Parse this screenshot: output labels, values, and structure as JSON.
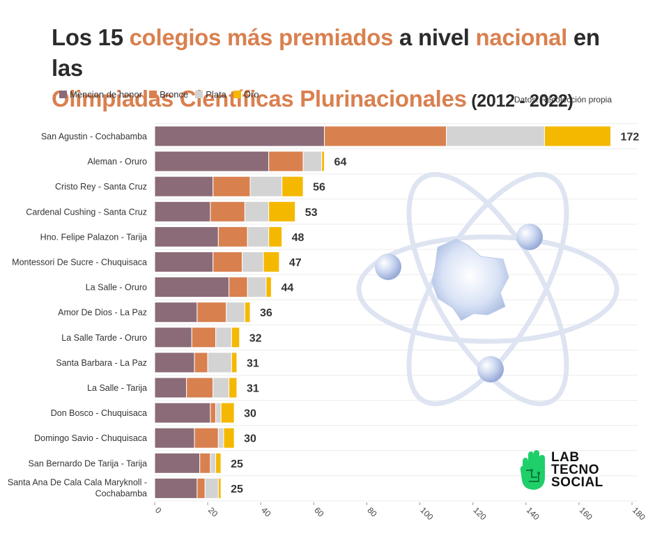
{
  "title": {
    "line1_a": "Los 15 ",
    "line1_b": "colegios más premiados",
    "line1_c": " a nivel ",
    "line1_d": "nacional",
    "line1_e": " en las",
    "line2_a": "Olimpiadas Científicas Plurinacionales",
    "line2_b": " (2012 - 2022)"
  },
  "source": "Datos: Recolección propia",
  "logo": {
    "line1": "LAB",
    "line2": "TECNO",
    "line3": "SOCIAL"
  },
  "colors": {
    "mencion": "#8b6b78",
    "bronce": "#d9804f",
    "plata": "#d3d3d3",
    "oro": "#f5b800",
    "accent": "#d9804f",
    "logo_green": "#1fcf6a"
  },
  "chart_data": {
    "type": "bar",
    "orientation": "horizontal",
    "stacked": true,
    "categories": [
      "San Agustin - Cochabamba",
      "Aleman - Oruro",
      "Cristo Rey - Santa Cruz",
      "Cardenal Cushing - Santa Cruz",
      "Hno. Felipe Palazon - Tarija",
      "Montessori De Sucre - Chuquisaca",
      "La Salle - Oruro",
      "Amor De Dios - La Paz",
      "La Salle Tarde - Oruro",
      "Santa Barbara - La Paz",
      "La Salle - Tarija",
      "Don Bosco - Chuquisaca",
      "Domingo Savio - Chuquisaca",
      "San Bernardo De Tarija - Tarija",
      "Santa Ana De Cala Cala Maryknoll - Cochabamba"
    ],
    "series": [
      {
        "name": "Mencion de honor",
        "key": "mencion",
        "values": [
          64,
          43,
          22,
          21,
          24,
          22,
          28,
          16,
          14,
          15,
          12,
          21,
          15,
          17,
          16
        ]
      },
      {
        "name": "Bronce",
        "key": "bronce",
        "values": [
          46,
          13,
          14,
          13,
          11,
          11,
          7,
          11,
          9,
          5,
          10,
          2,
          9,
          4,
          3
        ]
      },
      {
        "name": "Plata",
        "key": "plata",
        "values": [
          37,
          7,
          12,
          9,
          8,
          8,
          7,
          7,
          6,
          9,
          6,
          2,
          2,
          2,
          5
        ]
      },
      {
        "name": "Oro",
        "key": "oro",
        "values": [
          25,
          1,
          8,
          10,
          5,
          6,
          2,
          2,
          3,
          2,
          3,
          5,
          4,
          2,
          1
        ]
      }
    ],
    "totals": [
      172,
      64,
      56,
      53,
      48,
      47,
      44,
      36,
      32,
      31,
      31,
      30,
      30,
      25,
      25
    ],
    "xlim": [
      0,
      180
    ],
    "xticks": [
      0,
      20,
      40,
      60,
      80,
      100,
      120,
      140,
      160,
      180
    ],
    "title": "Los 15 colegios más premiados a nivel nacional en las Olimpiadas Científicas Plurinacionales (2012 - 2022)",
    "xlabel": "",
    "ylabel": "",
    "legend_position": "top-left",
    "grid": true
  }
}
